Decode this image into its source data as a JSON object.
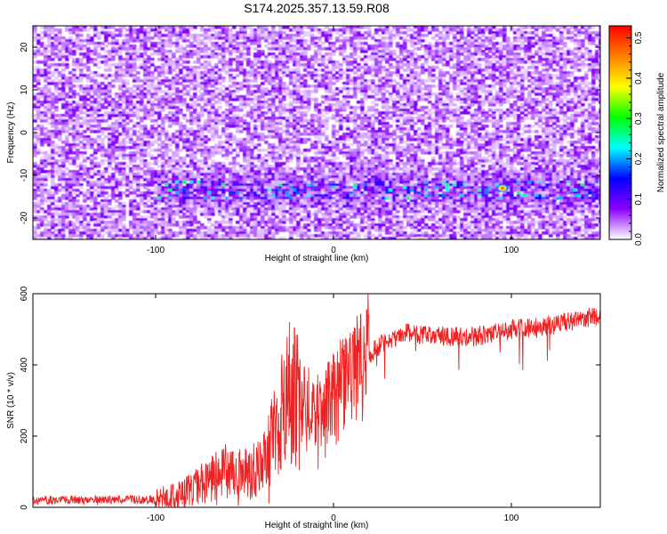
{
  "title": "S174.2025.357.13.59.R08",
  "colors": {
    "snr_line": "#ee2222",
    "colormap": [
      "#ffffff",
      "#8b00ff",
      "#0000ff",
      "#00ffff",
      "#00ff00",
      "#ffff00",
      "#ff7f00",
      "#ff0000"
    ]
  },
  "chart_data": [
    {
      "type": "heatmap",
      "xlabel": "Height of straight line (km)",
      "ylabel": "Frequency (Hz)",
      "xlim": [
        -169,
        150
      ],
      "ylim": [
        -25,
        25
      ],
      "x_ticks": [
        -100,
        0,
        100
      ],
      "y_ticks": [
        -20,
        -10,
        0,
        10,
        20
      ],
      "colorbar": {
        "label": "Normalized spectral amplitude",
        "range": [
          0.0,
          0.53
        ],
        "ticks": [
          0.0,
          0.1,
          0.2,
          0.3,
          0.4,
          0.5
        ]
      },
      "signal_band_frequency": -13,
      "signal_band_start_height": -100,
      "peak_height": 95,
      "peak_value": 0.5,
      "grid": false
    },
    {
      "type": "line",
      "xlabel": "Height of straight line (km)",
      "ylabel": "SNR (10 * v/v)",
      "xlim": [
        -169,
        150
      ],
      "ylim": [
        0,
        600
      ],
      "x_ticks": [
        -100,
        0,
        100
      ],
      "y_ticks": [
        0,
        200,
        400,
        600
      ],
      "trend_x": [
        -169,
        -100,
        -90,
        -80,
        -70,
        -60,
        -50,
        -40,
        -35,
        -30,
        -25,
        -20,
        -10,
        0,
        10,
        20,
        30,
        40,
        60,
        80,
        100,
        120,
        140,
        150
      ],
      "trend_y": [
        20,
        22,
        30,
        50,
        80,
        100,
        90,
        110,
        180,
        260,
        330,
        300,
        250,
        300,
        380,
        430,
        470,
        490,
        480,
        480,
        500,
        510,
        530,
        540
      ],
      "grid": false
    }
  ]
}
